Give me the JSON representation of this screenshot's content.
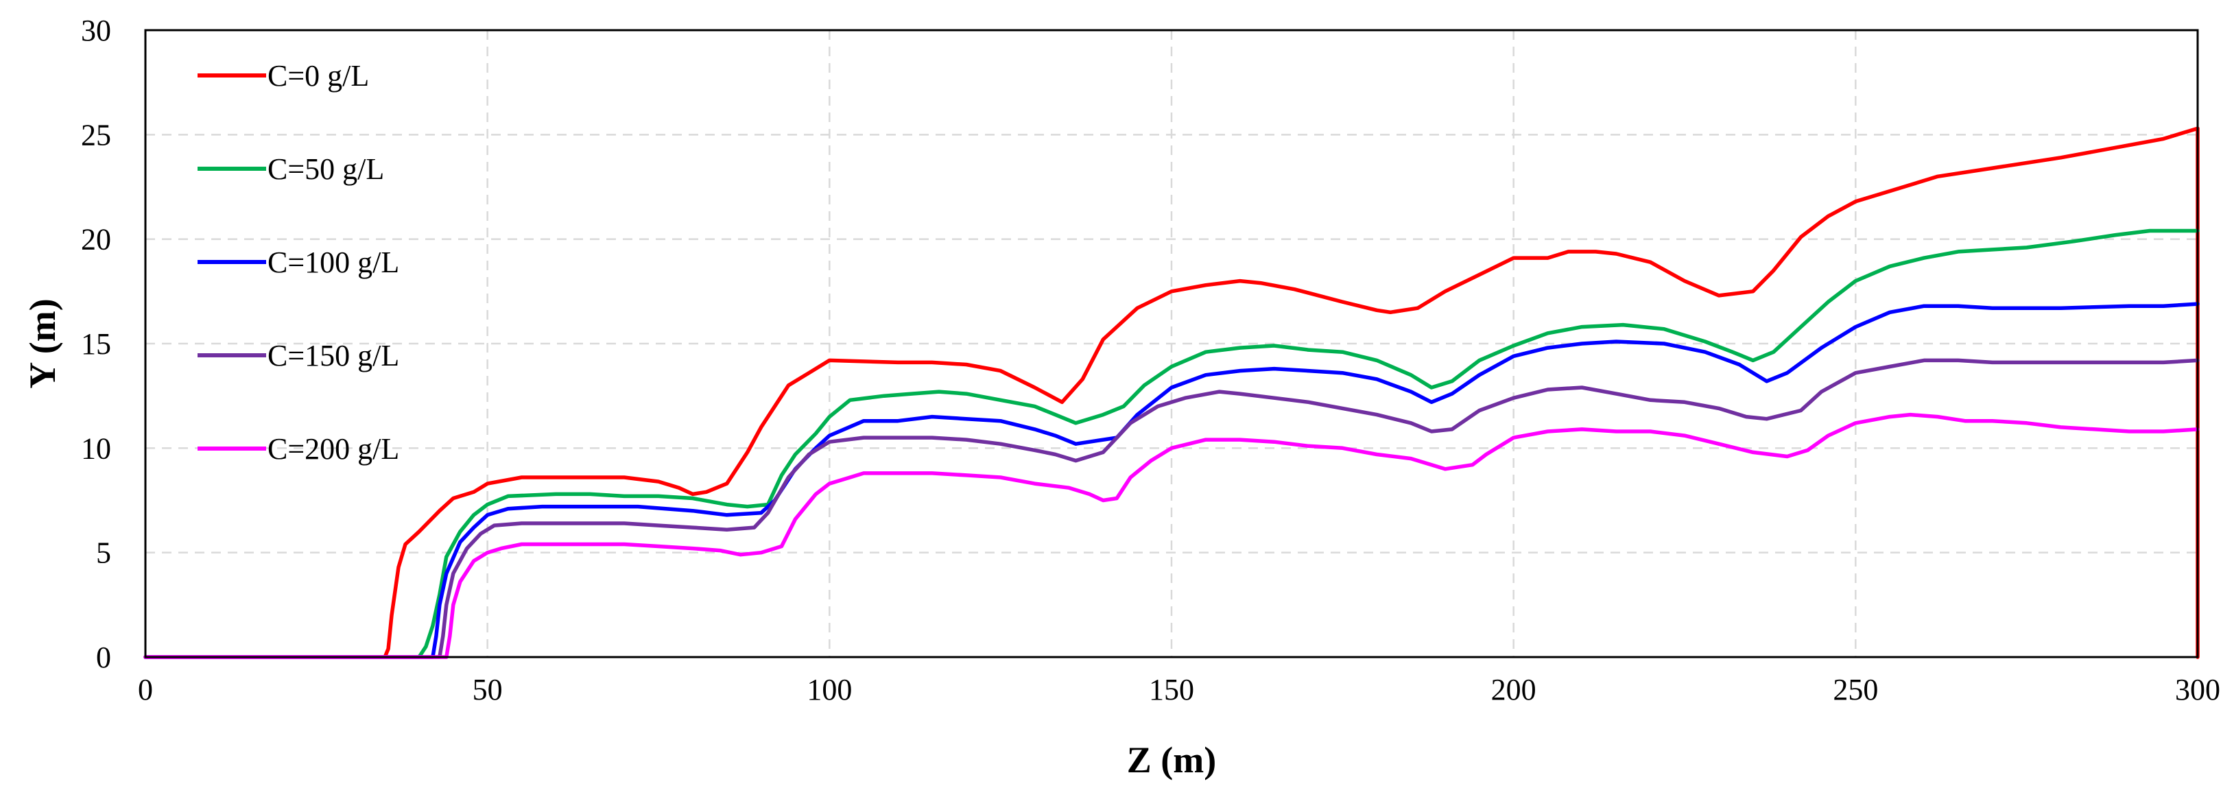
{
  "chart_data": {
    "type": "line",
    "xlabel": "Z (m)",
    "ylabel": "Y (m)",
    "xlim": [
      0,
      300
    ],
    "ylim": [
      0,
      30
    ],
    "xticks": [
      "0",
      "50",
      "100",
      "150",
      "200",
      "250",
      "300"
    ],
    "yticks": [
      "0",
      "5",
      "10",
      "15",
      "20",
      "25",
      "30"
    ],
    "grid": true,
    "legend_position": "top-left",
    "series": [
      {
        "name": "C=0 g/L",
        "color": "#ff0000",
        "points": [
          [
            0,
            0
          ],
          [
            35,
            0
          ],
          [
            35.5,
            0.4
          ],
          [
            36,
            2
          ],
          [
            37,
            4.3
          ],
          [
            38,
            5.4
          ],
          [
            40,
            6
          ],
          [
            43,
            7
          ],
          [
            45,
            7.6
          ],
          [
            48,
            7.9
          ],
          [
            50,
            8.3
          ],
          [
            55,
            8.6
          ],
          [
            60,
            8.6
          ],
          [
            70,
            8.6
          ],
          [
            75,
            8.4
          ],
          [
            78,
            8.1
          ],
          [
            80,
            7.8
          ],
          [
            82,
            7.9
          ],
          [
            85,
            8.3
          ],
          [
            88,
            9.8
          ],
          [
            90,
            11
          ],
          [
            94,
            13
          ],
          [
            97,
            13.6
          ],
          [
            100,
            14.2
          ],
          [
            110,
            14.1
          ],
          [
            115,
            14.1
          ],
          [
            120,
            14
          ],
          [
            125,
            13.7
          ],
          [
            130,
            12.9
          ],
          [
            134,
            12.2
          ],
          [
            137,
            13.3
          ],
          [
            140,
            15.2
          ],
          [
            142,
            15.8
          ],
          [
            145,
            16.7
          ],
          [
            150,
            17.5
          ],
          [
            155,
            17.8
          ],
          [
            160,
            18
          ],
          [
            163,
            17.9
          ],
          [
            168,
            17.6
          ],
          [
            175,
            17
          ],
          [
            180,
            16.6
          ],
          [
            182,
            16.5
          ],
          [
            186,
            16.7
          ],
          [
            190,
            17.5
          ],
          [
            195,
            18.3
          ],
          [
            200,
            19.1
          ],
          [
            205,
            19.1
          ],
          [
            208,
            19.4
          ],
          [
            212,
            19.4
          ],
          [
            215,
            19.3
          ],
          [
            220,
            18.9
          ],
          [
            225,
            18
          ],
          [
            230,
            17.3
          ],
          [
            235,
            17.5
          ],
          [
            238,
            18.5
          ],
          [
            242,
            20.1
          ],
          [
            246,
            21.1
          ],
          [
            250,
            21.8
          ],
          [
            255,
            22.3
          ],
          [
            262,
            23
          ],
          [
            270,
            23.4
          ],
          [
            280,
            23.9
          ],
          [
            290,
            24.5
          ],
          [
            295,
            24.8
          ],
          [
            300,
            25.3
          ],
          [
            300,
            0
          ]
        ]
      },
      {
        "name": "C=50 g/L",
        "color": "#00b050",
        "points": [
          [
            0,
            0
          ],
          [
            40,
            0
          ],
          [
            41,
            0.5
          ],
          [
            42,
            1.5
          ],
          [
            43,
            3
          ],
          [
            44,
            4.8
          ],
          [
            46,
            6
          ],
          [
            48,
            6.8
          ],
          [
            50,
            7.3
          ],
          [
            53,
            7.7
          ],
          [
            60,
            7.8
          ],
          [
            65,
            7.8
          ],
          [
            70,
            7.7
          ],
          [
            75,
            7.7
          ],
          [
            80,
            7.6
          ],
          [
            85,
            7.3
          ],
          [
            88,
            7.2
          ],
          [
            91,
            7.3
          ],
          [
            93,
            8.7
          ],
          [
            95,
            9.7
          ],
          [
            98,
            10.7
          ],
          [
            100,
            11.5
          ],
          [
            103,
            12.3
          ],
          [
            108,
            12.5
          ],
          [
            112,
            12.6
          ],
          [
            116,
            12.7
          ],
          [
            120,
            12.6
          ],
          [
            125,
            12.3
          ],
          [
            130,
            12
          ],
          [
            133,
            11.6
          ],
          [
            136,
            11.2
          ],
          [
            140,
            11.6
          ],
          [
            143,
            12
          ],
          [
            146,
            13
          ],
          [
            150,
            13.9
          ],
          [
            155,
            14.6
          ],
          [
            160,
            14.8
          ],
          [
            165,
            14.9
          ],
          [
            170,
            14.7
          ],
          [
            175,
            14.6
          ],
          [
            180,
            14.2
          ],
          [
            185,
            13.5
          ],
          [
            188,
            12.9
          ],
          [
            191,
            13.2
          ],
          [
            195,
            14.2
          ],
          [
            200,
            14.9
          ],
          [
            205,
            15.5
          ],
          [
            210,
            15.8
          ],
          [
            216,
            15.9
          ],
          [
            222,
            15.7
          ],
          [
            228,
            15.1
          ],
          [
            232,
            14.6
          ],
          [
            235,
            14.2
          ],
          [
            238,
            14.6
          ],
          [
            242,
            15.8
          ],
          [
            246,
            17
          ],
          [
            250,
            18
          ],
          [
            255,
            18.7
          ],
          [
            260,
            19.1
          ],
          [
            265,
            19.4
          ],
          [
            270,
            19.5
          ],
          [
            275,
            19.6
          ],
          [
            282,
            19.9
          ],
          [
            288,
            20.2
          ],
          [
            293,
            20.4
          ],
          [
            300,
            20.4
          ]
        ]
      },
      {
        "name": "C=100 g/L",
        "color": "#0000ff",
        "points": [
          [
            0,
            0
          ],
          [
            42,
            0
          ],
          [
            42.5,
            1
          ],
          [
            43,
            2.5
          ],
          [
            44,
            4
          ],
          [
            46,
            5.5
          ],
          [
            48,
            6.2
          ],
          [
            50,
            6.8
          ],
          [
            53,
            7.1
          ],
          [
            58,
            7.2
          ],
          [
            65,
            7.2
          ],
          [
            72,
            7.2
          ],
          [
            80,
            7
          ],
          [
            85,
            6.8
          ],
          [
            90,
            6.9
          ],
          [
            92,
            7.5
          ],
          [
            95,
            9
          ],
          [
            98,
            10
          ],
          [
            100,
            10.6
          ],
          [
            105,
            11.3
          ],
          [
            110,
            11.3
          ],
          [
            115,
            11.5
          ],
          [
            120,
            11.4
          ],
          [
            125,
            11.3
          ],
          [
            130,
            10.9
          ],
          [
            133,
            10.6
          ],
          [
            136,
            10.2
          ],
          [
            142,
            10.5
          ],
          [
            145,
            11.6
          ],
          [
            150,
            12.9
          ],
          [
            155,
            13.5
          ],
          [
            160,
            13.7
          ],
          [
            165,
            13.8
          ],
          [
            170,
            13.7
          ],
          [
            175,
            13.6
          ],
          [
            180,
            13.3
          ],
          [
            185,
            12.7
          ],
          [
            188,
            12.2
          ],
          [
            191,
            12.6
          ],
          [
            195,
            13.5
          ],
          [
            200,
            14.4
          ],
          [
            205,
            14.8
          ],
          [
            210,
            15
          ],
          [
            215,
            15.1
          ],
          [
            222,
            15
          ],
          [
            228,
            14.6
          ],
          [
            233,
            14
          ],
          [
            237,
            13.2
          ],
          [
            240,
            13.6
          ],
          [
            245,
            14.8
          ],
          [
            250,
            15.8
          ],
          [
            255,
            16.5
          ],
          [
            260,
            16.8
          ],
          [
            265,
            16.8
          ],
          [
            270,
            16.7
          ],
          [
            280,
            16.7
          ],
          [
            290,
            16.8
          ],
          [
            295,
            16.8
          ],
          [
            300,
            16.9
          ]
        ]
      },
      {
        "name": "C=150 g/L",
        "color": "#7030a0",
        "points": [
          [
            0,
            0
          ],
          [
            43,
            0
          ],
          [
            43.5,
            1
          ],
          [
            44,
            2.5
          ],
          [
            45,
            4
          ],
          [
            47,
            5.2
          ],
          [
            49,
            5.9
          ],
          [
            51,
            6.3
          ],
          [
            55,
            6.4
          ],
          [
            60,
            6.4
          ],
          [
            70,
            6.4
          ],
          [
            75,
            6.3
          ],
          [
            80,
            6.2
          ],
          [
            85,
            6.1
          ],
          [
            89,
            6.2
          ],
          [
            91,
            6.9
          ],
          [
            94,
            8.6
          ],
          [
            97,
            9.7
          ],
          [
            100,
            10.3
          ],
          [
            105,
            10.5
          ],
          [
            110,
            10.5
          ],
          [
            115,
            10.5
          ],
          [
            120,
            10.4
          ],
          [
            125,
            10.2
          ],
          [
            130,
            9.9
          ],
          [
            133,
            9.7
          ],
          [
            136,
            9.4
          ],
          [
            140,
            9.8
          ],
          [
            144,
            11.2
          ],
          [
            148,
            12
          ],
          [
            152,
            12.4
          ],
          [
            157,
            12.7
          ],
          [
            160,
            12.6
          ],
          [
            165,
            12.4
          ],
          [
            170,
            12.2
          ],
          [
            175,
            11.9
          ],
          [
            180,
            11.6
          ],
          [
            185,
            11.2
          ],
          [
            188,
            10.8
          ],
          [
            191,
            10.9
          ],
          [
            195,
            11.8
          ],
          [
            200,
            12.4
          ],
          [
            205,
            12.8
          ],
          [
            210,
            12.9
          ],
          [
            215,
            12.6
          ],
          [
            220,
            12.3
          ],
          [
            225,
            12.2
          ],
          [
            230,
            11.9
          ],
          [
            234,
            11.5
          ],
          [
            237,
            11.4
          ],
          [
            242,
            11.8
          ],
          [
            245,
            12.7
          ],
          [
            250,
            13.6
          ],
          [
            255,
            13.9
          ],
          [
            260,
            14.2
          ],
          [
            265,
            14.2
          ],
          [
            270,
            14.1
          ],
          [
            280,
            14.1
          ],
          [
            290,
            14.1
          ],
          [
            295,
            14.1
          ],
          [
            300,
            14.2
          ]
        ]
      },
      {
        "name": "C=200 g/L",
        "color": "#ff00ff",
        "points": [
          [
            0,
            0
          ],
          [
            44,
            0
          ],
          [
            44.5,
            1
          ],
          [
            45,
            2.5
          ],
          [
            46,
            3.6
          ],
          [
            48,
            4.6
          ],
          [
            50,
            5
          ],
          [
            52,
            5.2
          ],
          [
            55,
            5.4
          ],
          [
            60,
            5.4
          ],
          [
            65,
            5.4
          ],
          [
            70,
            5.4
          ],
          [
            75,
            5.3
          ],
          [
            80,
            5.2
          ],
          [
            84,
            5.1
          ],
          [
            87,
            4.9
          ],
          [
            90,
            5
          ],
          [
            93,
            5.3
          ],
          [
            95,
            6.6
          ],
          [
            98,
            7.8
          ],
          [
            100,
            8.3
          ],
          [
            103,
            8.6
          ],
          [
            105,
            8.8
          ],
          [
            110,
            8.8
          ],
          [
            115,
            8.8
          ],
          [
            120,
            8.7
          ],
          [
            125,
            8.6
          ],
          [
            130,
            8.3
          ],
          [
            135,
            8.1
          ],
          [
            138,
            7.8
          ],
          [
            140,
            7.5
          ],
          [
            142,
            7.6
          ],
          [
            144,
            8.6
          ],
          [
            147,
            9.4
          ],
          [
            150,
            10
          ],
          [
            155,
            10.4
          ],
          [
            160,
            10.4
          ],
          [
            165,
            10.3
          ],
          [
            170,
            10.1
          ],
          [
            175,
            10
          ],
          [
            180,
            9.7
          ],
          [
            185,
            9.5
          ],
          [
            190,
            9
          ],
          [
            194,
            9.2
          ],
          [
            196,
            9.7
          ],
          [
            200,
            10.5
          ],
          [
            205,
            10.8
          ],
          [
            210,
            10.9
          ],
          [
            215,
            10.8
          ],
          [
            220,
            10.8
          ],
          [
            225,
            10.6
          ],
          [
            230,
            10.2
          ],
          [
            235,
            9.8
          ],
          [
            240,
            9.6
          ],
          [
            243,
            9.9
          ],
          [
            246,
            10.6
          ],
          [
            250,
            11.2
          ],
          [
            255,
            11.5
          ],
          [
            258,
            11.6
          ],
          [
            262,
            11.5
          ],
          [
            266,
            11.3
          ],
          [
            270,
            11.3
          ],
          [
            275,
            11.2
          ],
          [
            280,
            11
          ],
          [
            285,
            10.9
          ],
          [
            290,
            10.8
          ],
          [
            295,
            10.8
          ],
          [
            300,
            10.9
          ]
        ]
      }
    ]
  }
}
